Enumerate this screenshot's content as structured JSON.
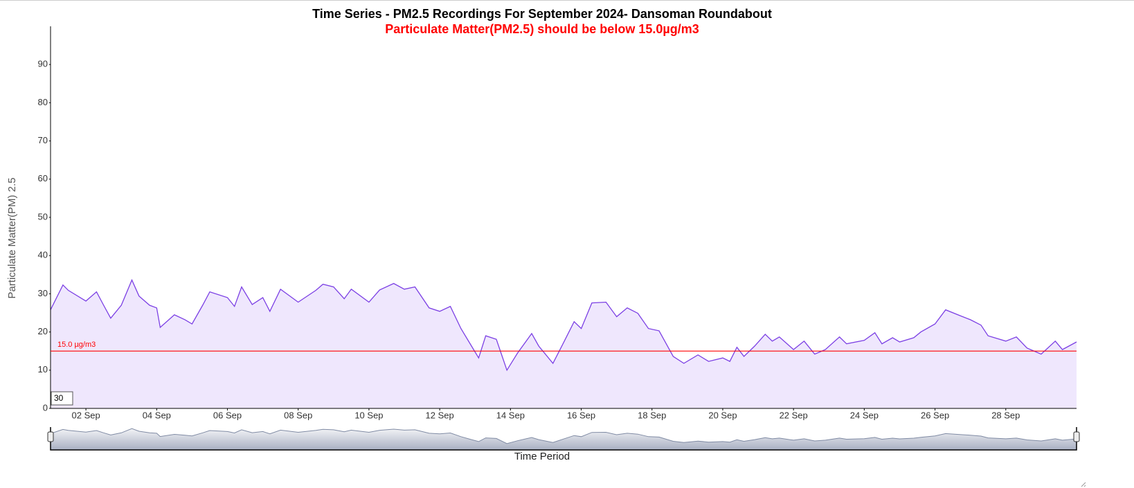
{
  "chart_data": {
    "type": "line",
    "title": "Time Series - PM2.5 Recordings For September 2024- Dansoman Roundabout",
    "subtitle": "Particulate Matter(PM2.5) should be below 15.0µg/m3",
    "y_label": "Particulate Matter(PM) 2.5",
    "x_label": "Time Period",
    "roll_period": 30,
    "x": [
      1.0,
      1.35,
      1.5,
      2.0,
      2.3,
      2.5,
      2.7,
      3.0,
      3.3,
      3.5,
      3.8,
      4.0,
      4.1,
      4.5,
      4.8,
      5.0,
      5.3,
      5.5,
      6.0,
      6.2,
      6.4,
      6.7,
      7.0,
      7.2,
      7.5,
      8.0,
      8.5,
      8.7,
      9.0,
      9.3,
      9.5,
      10.0,
      10.3,
      10.7,
      11.0,
      11.3,
      11.7,
      12.0,
      12.3,
      12.6,
      12.9,
      13.1,
      13.3,
      13.6,
      13.9,
      14.2,
      14.6,
      14.8,
      15.2,
      15.5,
      15.8,
      16.0,
      16.3,
      16.7,
      17.0,
      17.3,
      17.6,
      17.9,
      18.2,
      18.6,
      18.9,
      19.3,
      19.6,
      20.0,
      20.2,
      20.4,
      20.6,
      20.9,
      21.2,
      21.4,
      21.6,
      22.0,
      22.3,
      22.6,
      22.9,
      23.3,
      23.5,
      24.0,
      24.3,
      24.5,
      24.8,
      25.0,
      25.4,
      25.6,
      26.0,
      26.3,
      26.7,
      27.0,
      27.3,
      27.5,
      28.0,
      28.3,
      28.6,
      29.0,
      29.4,
      29.6,
      30.0
    ],
    "series": [
      {
        "name": "PM2.5",
        "color": "#7b3fe4",
        "fill": "#efe7fd",
        "values": [
          25.8,
          32.3,
          30.9,
          28.1,
          30.5,
          27,
          23.6,
          27,
          33.6,
          29.4,
          27,
          26.3,
          21.2,
          24.5,
          23.2,
          22.1,
          27,
          30.5,
          29,
          26.7,
          31.8,
          27.2,
          29,
          25.4,
          31.2,
          27.8,
          30.9,
          32.5,
          31.8,
          28.7,
          31.2,
          27.8,
          31,
          32.7,
          31.2,
          31.8,
          26.3,
          25.4,
          26.7,
          20.9,
          16.3,
          13.2,
          19,
          18.1,
          10,
          14.5,
          19.6,
          16.3,
          11.8,
          17.2,
          22.7,
          20.9,
          27.6,
          27.8,
          24,
          26.3,
          24.9,
          20.9,
          20.3,
          13.6,
          11.8,
          14,
          12.3,
          13.2,
          12.3,
          16,
          13.6,
          16.3,
          19.4,
          17.6,
          18.7,
          15.4,
          17.6,
          14.2,
          15.4,
          18.7,
          16.9,
          17.8,
          19.8,
          16.9,
          18.5,
          17.4,
          18.5,
          20,
          22.1,
          25.8,
          24.3,
          23.2,
          21.8,
          19,
          17.6,
          18.7,
          15.8,
          14.2,
          17.6,
          15.4,
          17.4
        ]
      }
    ],
    "threshold": {
      "value": 15,
      "label": "15.0 µg/m3",
      "color": "#ff0000"
    },
    "xlim": [
      1,
      30
    ],
    "ylim": [
      0,
      100
    ],
    "yticks": [
      0,
      10,
      20,
      30,
      40,
      50,
      60,
      70,
      80,
      90
    ],
    "xticks": [
      {
        "value": 2,
        "label": "02 Sep"
      },
      {
        "value": 4,
        "label": "04 Sep"
      },
      {
        "value": 6,
        "label": "06 Sep"
      },
      {
        "value": 8,
        "label": "08 Sep"
      },
      {
        "value": 10,
        "label": "10 Sep"
      },
      {
        "value": 12,
        "label": "12 Sep"
      },
      {
        "value": 14,
        "label": "14 Sep"
      },
      {
        "value": 16,
        "label": "16 Sep"
      },
      {
        "value": 18,
        "label": "18 Sep"
      },
      {
        "value": 20,
        "label": "20 Sep"
      },
      {
        "value": 22,
        "label": "22 Sep"
      },
      {
        "value": 24,
        "label": "24 Sep"
      },
      {
        "value": 26,
        "label": "26 Sep"
      },
      {
        "value": 28,
        "label": "28 Sep"
      }
    ],
    "grid": false,
    "range_selector": true
  }
}
